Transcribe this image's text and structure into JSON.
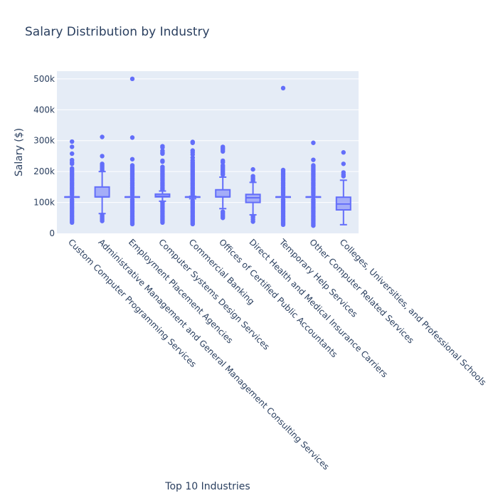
{
  "chart_data": {
    "type": "box",
    "title": "Salary Distribution by Industry",
    "xlabel": "Top 10 Industries",
    "ylabel": "Salary ($)",
    "ylim": [
      0,
      525000
    ],
    "yticks": [
      0,
      100000,
      200000,
      300000,
      400000,
      500000
    ],
    "ytick_labels": [
      "0",
      "100k",
      "200k",
      "300k",
      "400k",
      "500k"
    ],
    "grid": true,
    "colors": {
      "box": "#636efa",
      "fill": "rgba(99,110,250,0.5)",
      "plot_bg": "#e5ecf6",
      "grid": "#ffffff",
      "text": "#2a3f5f"
    },
    "categories": [
      "Custom Computer Programming Services",
      "Administrative Management and General Management Consulting Services",
      "Employment Placement Agencies",
      "Computer Systems Design Services",
      "Commercial Banking",
      "Offices of Certified Public Accountants",
      "Direct Health and Medical Insurance Carriers",
      "Temporary Help Services",
      "Other Computer Related Services",
      "Colleges, Universities, and Professional Schools"
    ],
    "boxes": [
      {
        "min": 118000,
        "q1": 118000,
        "median": 118000,
        "q3": 118000,
        "max": 118000,
        "outliers": [
          35000,
          40000,
          45000,
          50000,
          55000,
          60000,
          65000,
          70000,
          75000,
          80000,
          85000,
          90000,
          95000,
          100000,
          105000,
          110000,
          125000,
          130000,
          135000,
          140000,
          145000,
          150000,
          155000,
          160000,
          165000,
          170000,
          175000,
          180000,
          185000,
          190000,
          195000,
          200000,
          205000,
          210000,
          225000,
          230000,
          237000,
          258000,
          280000,
          297000
        ]
      },
      {
        "min": 64000,
        "q1": 118000,
        "median": 118000,
        "q3": 150000,
        "max": 200000,
        "outliers": [
          40000,
          45000,
          50000,
          55000,
          60000,
          205000,
          210000,
          215000,
          220000,
          225000,
          250000,
          312000
        ]
      },
      {
        "min": 118000,
        "q1": 118000,
        "median": 118000,
        "q3": 118000,
        "max": 118000,
        "outliers": [
          30000,
          35000,
          40000,
          45000,
          50000,
          55000,
          60000,
          65000,
          70000,
          75000,
          80000,
          85000,
          90000,
          95000,
          100000,
          105000,
          110000,
          125000,
          130000,
          135000,
          140000,
          145000,
          150000,
          155000,
          160000,
          165000,
          170000,
          175000,
          180000,
          185000,
          190000,
          195000,
          200000,
          205000,
          210000,
          215000,
          220000,
          240000,
          310000,
          500000
        ]
      },
      {
        "min": 104000,
        "q1": 118000,
        "median": 120000,
        "q3": 127000,
        "max": 137000,
        "outliers": [
          35000,
          40000,
          45000,
          50000,
          55000,
          60000,
          65000,
          70000,
          75000,
          80000,
          85000,
          90000,
          95000,
          100000,
          142000,
          145000,
          150000,
          155000,
          160000,
          165000,
          170000,
          175000,
          180000,
          185000,
          190000,
          195000,
          200000,
          205000,
          210000,
          215000,
          232000,
          235000,
          258000,
          262000,
          267000,
          278000,
          282000
        ]
      },
      {
        "min": 112000,
        "q1": 117000,
        "median": 118000,
        "q3": 118000,
        "max": 120000,
        "outliers": [
          30000,
          35000,
          40000,
          45000,
          50000,
          55000,
          60000,
          65000,
          70000,
          75000,
          80000,
          85000,
          90000,
          95000,
          100000,
          105000,
          125000,
          130000,
          135000,
          140000,
          145000,
          150000,
          155000,
          160000,
          165000,
          170000,
          175000,
          180000,
          185000,
          190000,
          195000,
          200000,
          205000,
          210000,
          215000,
          220000,
          225000,
          230000,
          236000,
          245000,
          255000,
          262000,
          268000,
          293000,
          296000
        ]
      },
      {
        "min": 80000,
        "q1": 118000,
        "median": 118000,
        "q3": 141000,
        "max": 182000,
        "outliers": [
          50000,
          55000,
          60000,
          65000,
          70000,
          190000,
          195000,
          200000,
          205000,
          210000,
          215000,
          220000,
          230000,
          235000,
          265000,
          270000,
          275000,
          280000
        ]
      },
      {
        "min": 60000,
        "q1": 100000,
        "median": 115000,
        "q3": 126000,
        "max": 165000,
        "outliers": [
          38000,
          45000,
          52000,
          56000,
          170000,
          175000,
          180000,
          185000,
          207000
        ]
      },
      {
        "min": 118000,
        "q1": 118000,
        "median": 118000,
        "q3": 118000,
        "max": 118000,
        "outliers": [
          28000,
          32000,
          36000,
          40000,
          45000,
          50000,
          55000,
          60000,
          65000,
          70000,
          75000,
          80000,
          85000,
          90000,
          95000,
          100000,
          105000,
          110000,
          125000,
          130000,
          135000,
          140000,
          145000,
          150000,
          155000,
          160000,
          165000,
          170000,
          175000,
          180000,
          185000,
          190000,
          195000,
          200000,
          205000,
          470000
        ]
      },
      {
        "min": 118000,
        "q1": 118000,
        "median": 118000,
        "q3": 118000,
        "max": 118000,
        "outliers": [
          25000,
          30000,
          35000,
          40000,
          45000,
          50000,
          55000,
          60000,
          65000,
          70000,
          75000,
          80000,
          85000,
          90000,
          95000,
          100000,
          105000,
          110000,
          125000,
          130000,
          135000,
          140000,
          145000,
          150000,
          155000,
          160000,
          165000,
          170000,
          175000,
          180000,
          185000,
          190000,
          195000,
          200000,
          205000,
          210000,
          215000,
          220000,
          238000,
          293000
        ]
      },
      {
        "min": 28000,
        "q1": 76000,
        "median": 95000,
        "q3": 117000,
        "max": 172000,
        "outliers": [
          185000,
          190000,
          197000,
          225000,
          262000
        ]
      }
    ]
  }
}
